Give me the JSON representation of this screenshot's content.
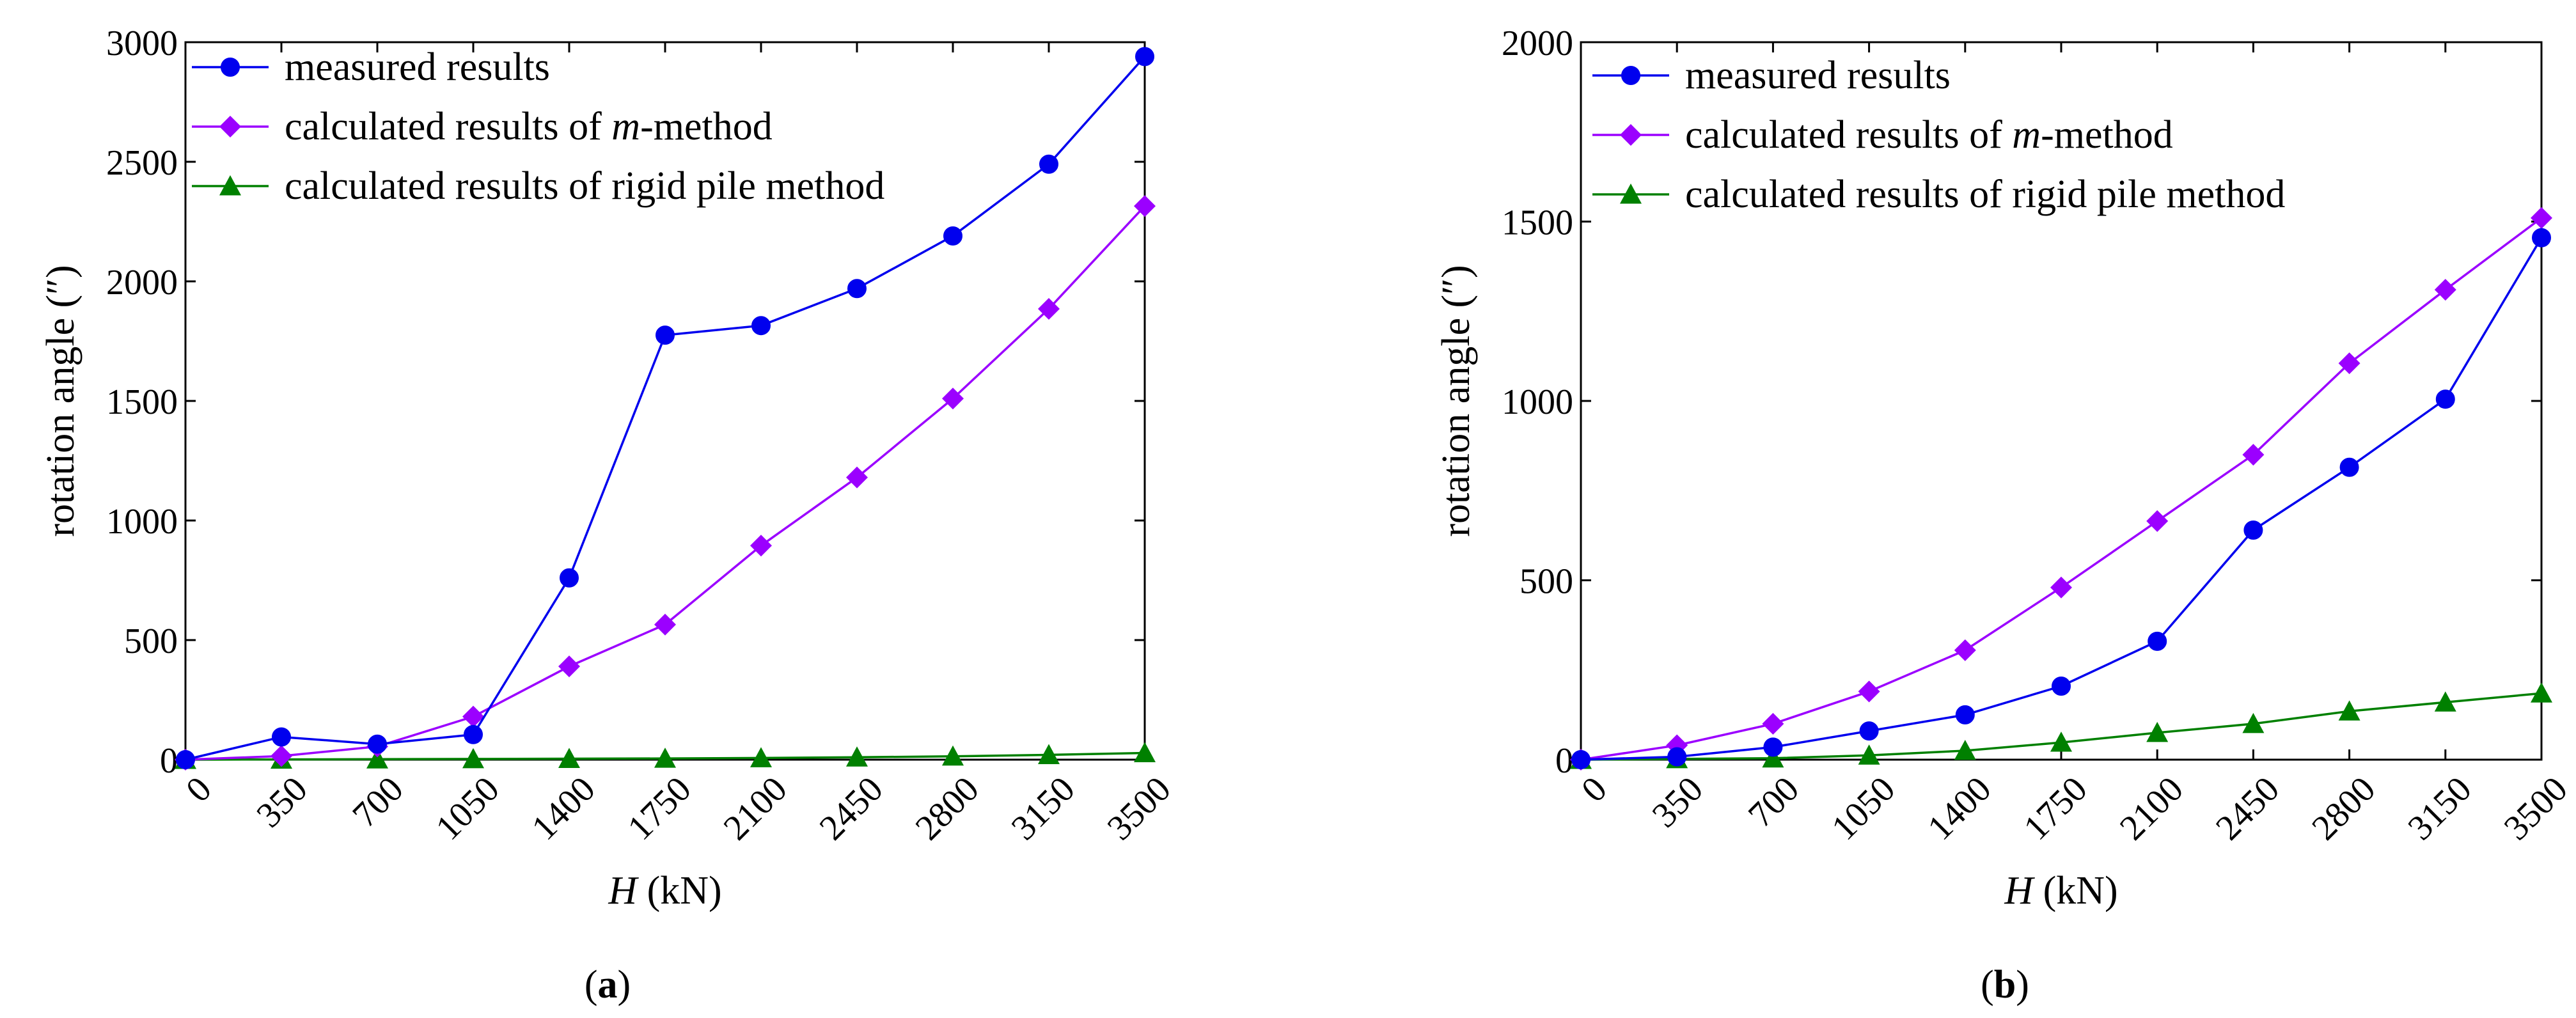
{
  "figure": {
    "panels": [
      {
        "id": "a",
        "caption_prefix": "(",
        "caption_letter": "a",
        "caption_suffix": ")"
      },
      {
        "id": "b",
        "caption_prefix": "(",
        "caption_letter": "b",
        "caption_suffix": ")"
      }
    ]
  },
  "chart_data": [
    {
      "type": "line",
      "panel": "a",
      "title": "",
      "xlabel_italic": "H",
      "xlabel_rest": " (kN)",
      "ylabel": "rotation angle (″)",
      "x": [
        0,
        350,
        700,
        1050,
        1400,
        1750,
        2100,
        2450,
        2800,
        3150,
        3500
      ],
      "xlim": [
        0,
        3500
      ],
      "ylim": [
        0,
        3000
      ],
      "xticks": [
        0,
        350,
        700,
        1050,
        1400,
        1750,
        2100,
        2450,
        2800,
        3150,
        3500
      ],
      "yticks": [
        0,
        500,
        1000,
        1500,
        2000,
        2500,
        3000
      ],
      "legend_position": "top-left",
      "series": [
        {
          "name": "measured results",
          "name_pre": "measured results",
          "name_italic": "",
          "name_post": "",
          "color": "#0000ee",
          "marker": "circle",
          "values": [
            0,
            95,
            65,
            105,
            760,
            1775,
            1815,
            1970,
            2190,
            2490,
            2940
          ]
        },
        {
          "name": "calculated results of m-method",
          "name_pre": "calculated results of ",
          "name_italic": "m",
          "name_post": "-method",
          "color": "#9b00ff",
          "marker": "diamond",
          "values": [
            0,
            15,
            55,
            180,
            390,
            565,
            895,
            1180,
            1510,
            1885,
            2315
          ]
        },
        {
          "name": "calculated results of rigid pile method",
          "name_pre": "calculated results of rigid pile method",
          "name_italic": "",
          "name_post": "",
          "color": "#008000",
          "marker": "triangle",
          "values": [
            0,
            1,
            2,
            3,
            4,
            5,
            7,
            10,
            14,
            20,
            28
          ]
        }
      ]
    },
    {
      "type": "line",
      "panel": "b",
      "title": "",
      "xlabel_italic": "H",
      "xlabel_rest": " (kN)",
      "ylabel": "rotation angle (″)",
      "x": [
        0,
        350,
        700,
        1050,
        1400,
        1750,
        2100,
        2450,
        2800,
        3150,
        3500
      ],
      "xlim": [
        0,
        3500
      ],
      "ylim": [
        0,
        2000
      ],
      "xticks": [
        0,
        350,
        700,
        1050,
        1400,
        1750,
        2100,
        2450,
        2800,
        3150,
        3500
      ],
      "yticks": [
        0,
        500,
        1000,
        1500,
        2000
      ],
      "legend_position": "top-left",
      "series": [
        {
          "name": "measured results",
          "name_pre": "measured results",
          "name_italic": "",
          "name_post": "",
          "color": "#0000ee",
          "marker": "circle",
          "values": [
            0,
            8,
            35,
            80,
            125,
            205,
            330,
            640,
            815,
            1005,
            1455
          ]
        },
        {
          "name": "calculated results of m-method",
          "name_pre": "calculated results of ",
          "name_italic": "m",
          "name_post": "-method",
          "color": "#9b00ff",
          "marker": "diamond",
          "values": [
            0,
            40,
            100,
            190,
            305,
            480,
            665,
            850,
            1105,
            1310,
            1510
          ]
        },
        {
          "name": "calculated results of rigid pile method",
          "name_pre": "calculated results of rigid pile method",
          "name_italic": "",
          "name_post": "",
          "color": "#008000",
          "marker": "triangle",
          "values": [
            0,
            2,
            4,
            12,
            25,
            48,
            75,
            100,
            135,
            160,
            185
          ]
        }
      ]
    }
  ]
}
